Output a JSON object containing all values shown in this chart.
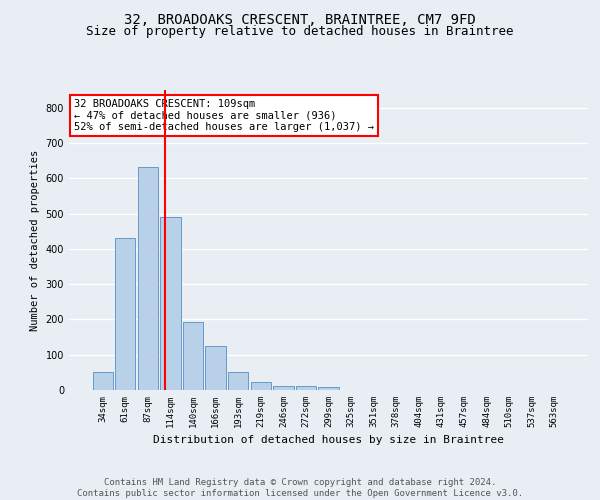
{
  "title1": "32, BROADOAKS CRESCENT, BRAINTREE, CM7 9FD",
  "title2": "Size of property relative to detached houses in Braintree",
  "xlabel": "Distribution of detached houses by size in Braintree",
  "ylabel": "Number of detached properties",
  "bar_labels": [
    "34sqm",
    "61sqm",
    "87sqm",
    "114sqm",
    "140sqm",
    "166sqm",
    "193sqm",
    "219sqm",
    "246sqm",
    "272sqm",
    "299sqm",
    "325sqm",
    "351sqm",
    "378sqm",
    "404sqm",
    "431sqm",
    "457sqm",
    "484sqm",
    "510sqm",
    "537sqm",
    "563sqm"
  ],
  "bar_values": [
    52,
    432,
    632,
    490,
    193,
    126,
    52,
    22,
    10,
    10,
    8,
    0,
    0,
    0,
    0,
    0,
    0,
    0,
    0,
    0,
    0
  ],
  "bar_color": "#b8d0e8",
  "bar_edgecolor": "#6699cc",
  "property_line_x": 2.75,
  "annotation_text": "32 BROADOAKS CRESCENT: 109sqm\n← 47% of detached houses are smaller (936)\n52% of semi-detached houses are larger (1,037) →",
  "annotation_box_color": "white",
  "annotation_box_edgecolor": "red",
  "vline_color": "red",
  "ylim": [
    0,
    850
  ],
  "yticks": [
    0,
    100,
    200,
    300,
    400,
    500,
    600,
    700,
    800
  ],
  "background_color": "#e8eef4",
  "grid_color": "white",
  "footer_text": "Contains HM Land Registry data © Crown copyright and database right 2024.\nContains public sector information licensed under the Open Government Licence v3.0.",
  "title1_fontsize": 10,
  "title2_fontsize": 9,
  "annotation_fontsize": 7.5,
  "footer_fontsize": 6.5,
  "ylabel_fontsize": 7.5,
  "xlabel_fontsize": 8,
  "tick_fontsize": 6.5,
  "ytick_fontsize": 7
}
